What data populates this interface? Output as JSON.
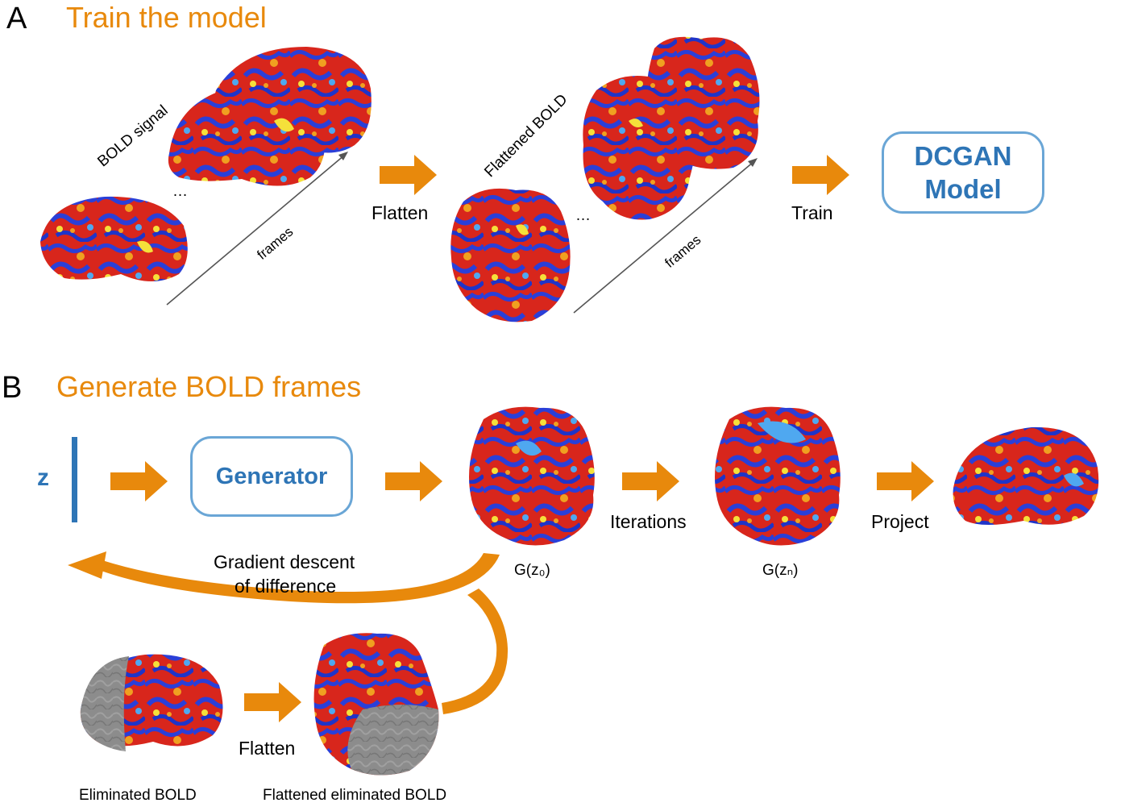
{
  "panel_a": {
    "letter": "A",
    "title": "Train the model",
    "bold_signal": "BOLD signal",
    "frames": "frames",
    "ellipsis": "…",
    "flatten": "Flatten",
    "flattened_bold": "Flattened BOLD",
    "train": "Train",
    "model_box": [
      "DCGAN",
      "Model"
    ]
  },
  "panel_b": {
    "letter": "B",
    "title": "Generate BOLD frames",
    "z": "z",
    "generator": "Generator",
    "iterations": "Iterations",
    "project": "Project",
    "gz0": "G(z₀)",
    "gzn": "G(zₙ)",
    "gradient": [
      "Gradient descent",
      "of difference"
    ],
    "flatten": "Flatten",
    "eliminated_bold": "Eliminated BOLD",
    "flattened_eliminated_bold": "Flattened eliminated BOLD"
  },
  "colors": {
    "accent_orange": "#E8890C",
    "box_blue": "#2E75B6",
    "box_border": "#6AA6D6",
    "activation_red": "#D8261C",
    "activation_blue": "#2A3FD8",
    "activation_yellow": "#F5E03A",
    "eliminated_gray": "#8A8A8A"
  }
}
